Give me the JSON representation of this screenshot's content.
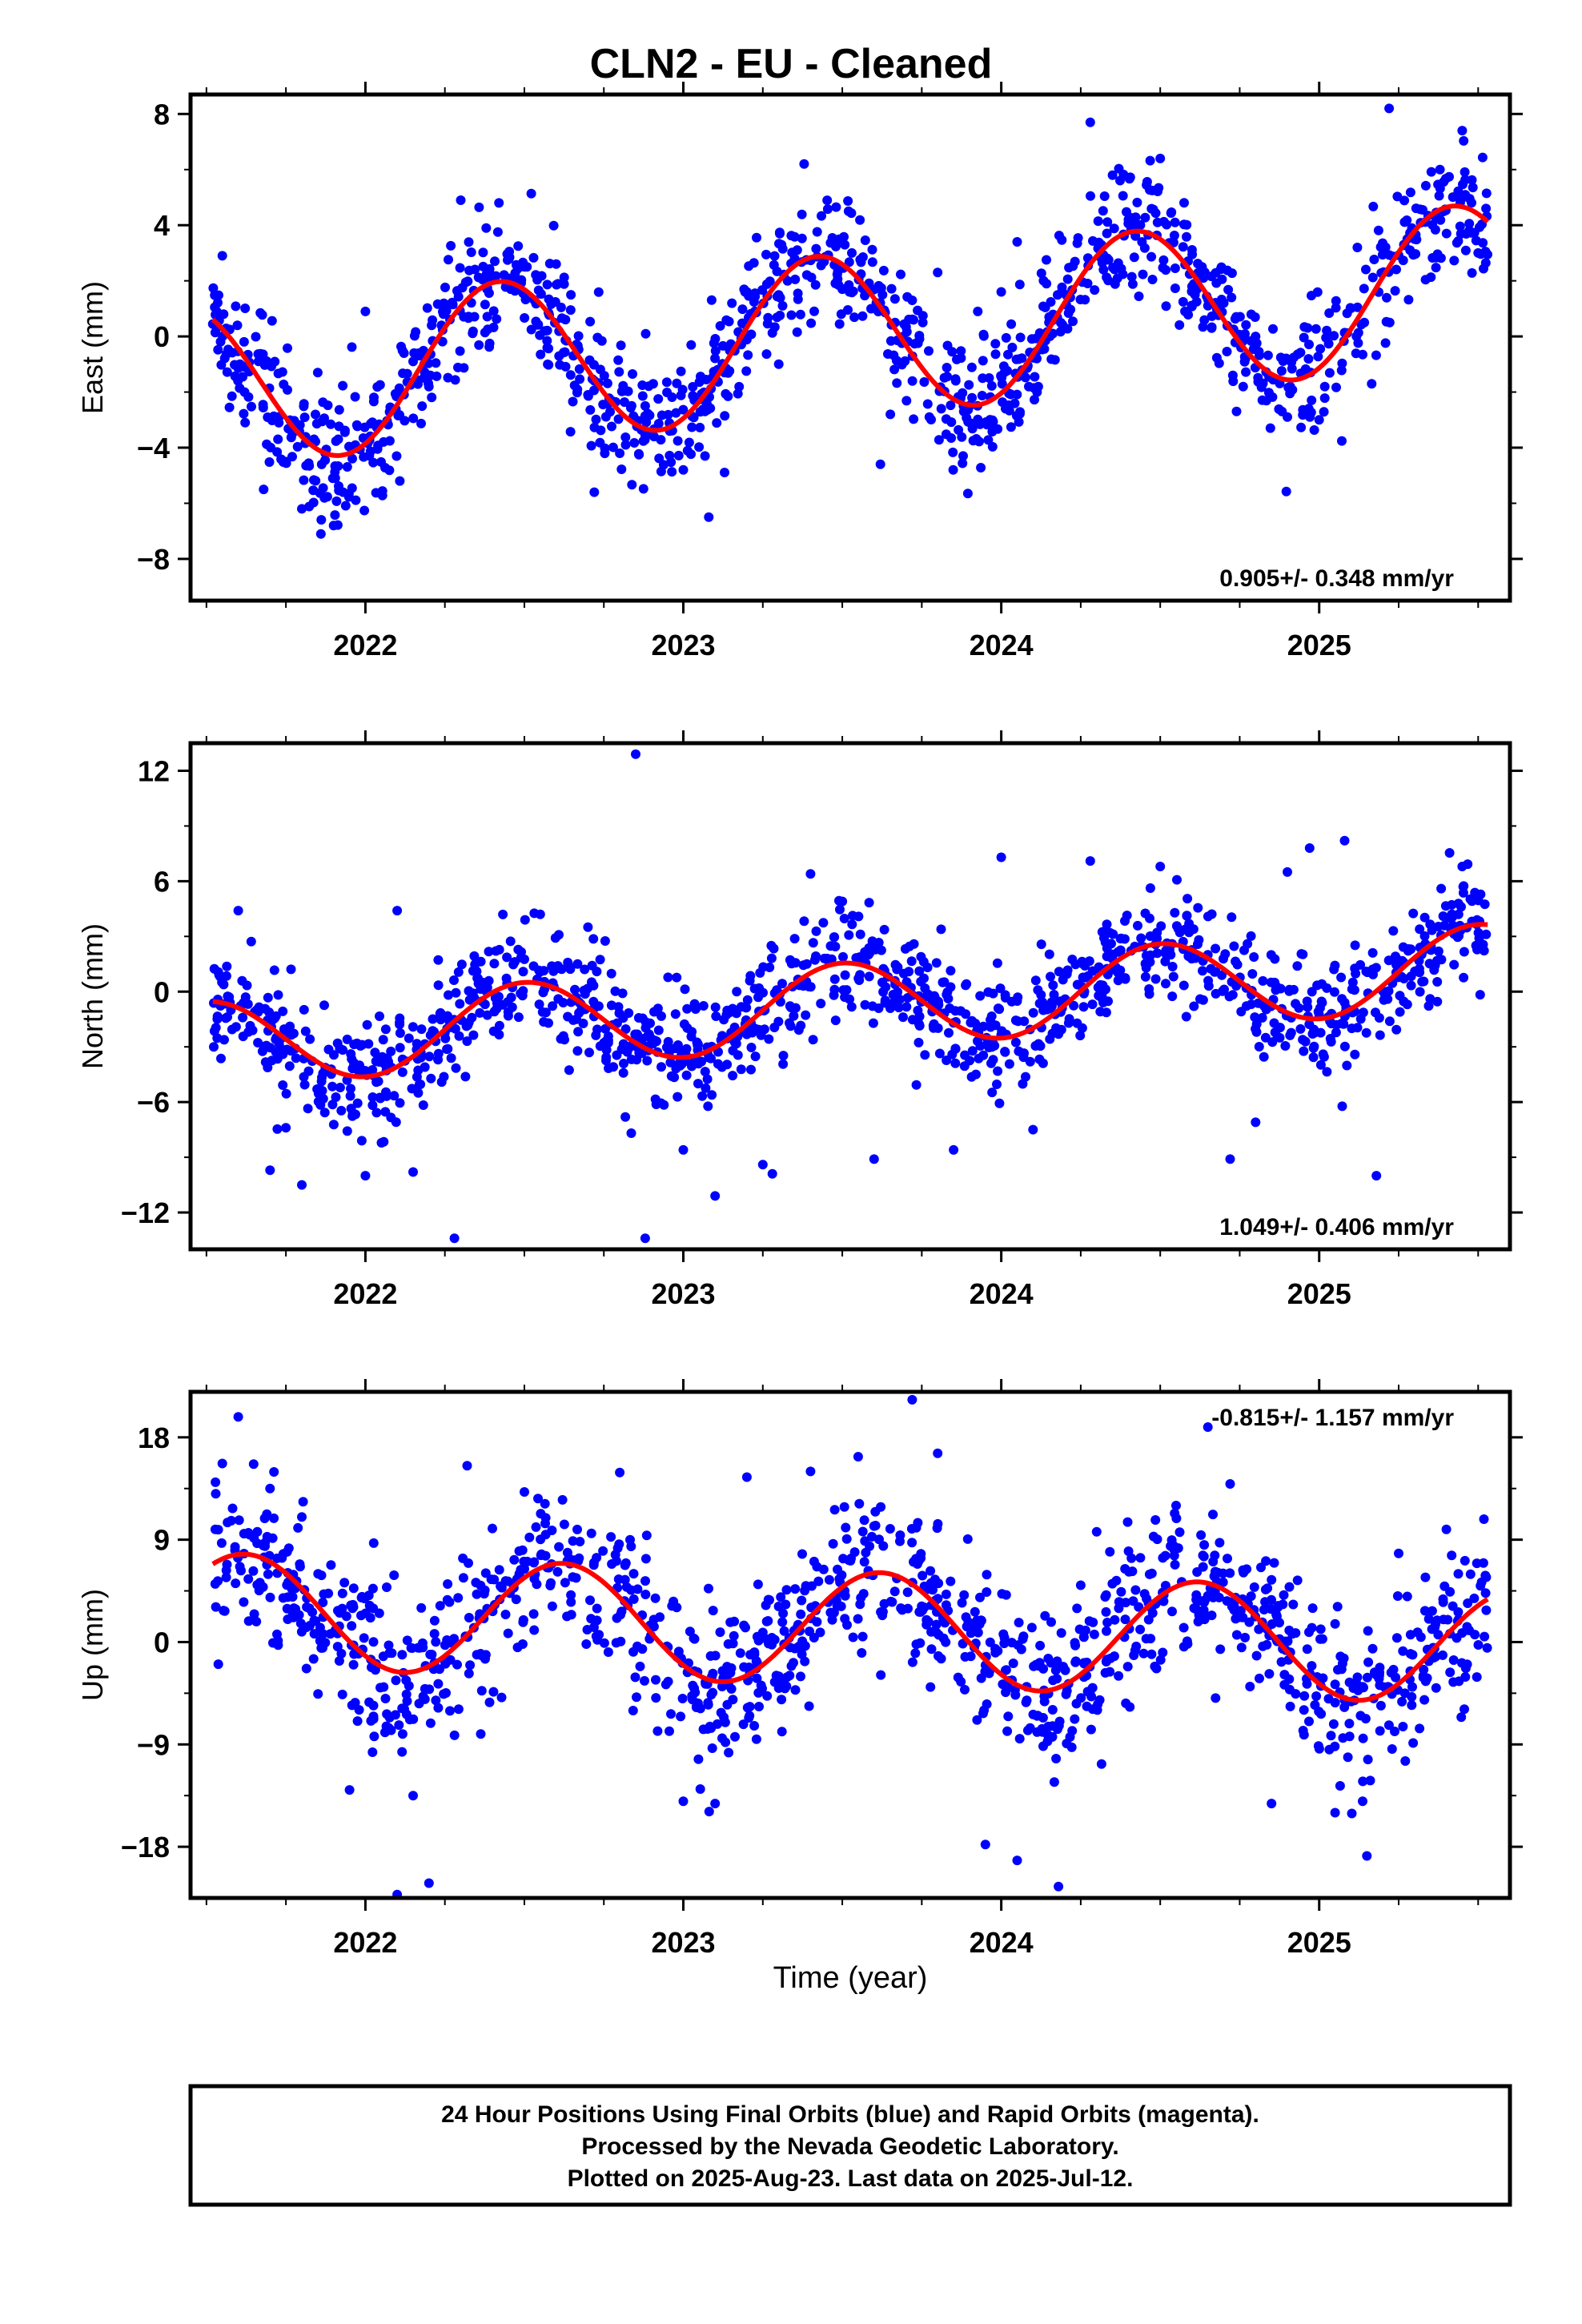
{
  "title": "CLN2  - EU - Cleaned",
  "xlabel": "Time (year)",
  "footer": [
    "24 Hour Positions Using Final Orbits (blue) and Rapid Orbits (magenta).",
    "Processed by the Nevada Geodetic Laboratory.",
    "Plotted on 2025-Aug-23. Last data on 2025-Jul-12."
  ],
  "colors": {
    "points": "#0000ff",
    "fit": "#ff0000",
    "frame": "#000000"
  },
  "chart_data": [
    {
      "type": "scatter",
      "ylabel": "East (mm)",
      "rate": "0.905+/- 0.348 mm/yr",
      "rate_position": "bottom-right",
      "xlim": [
        2021.45,
        2025.6
      ],
      "ylim": [
        -9.5,
        8.7
      ],
      "xticks": [
        2022,
        2023,
        2024,
        2025
      ],
      "yticks": [
        8,
        4,
        0,
        -4,
        -8
      ],
      "ytick_labels": [
        "8",
        "4",
        "0",
        "−4",
        "−8"
      ],
      "fit": {
        "offset": 0.05,
        "trend": 0.905,
        "amp": 2.9,
        "peak": 2021.42,
        "data_start": 2021.52,
        "data_end": 2025.53
      },
      "noise_sd": 1.15,
      "series": [
        {
          "name": "",
          "x": [
            2021.55,
            2021.62,
            2021.68,
            2021.75,
            2021.8,
            2021.86,
            2021.9,
            2021.93,
            2022.0,
            2022.15,
            2022.3,
            2022.38,
            2022.42,
            2022.5,
            2022.6,
            2022.72,
            2022.8,
            2022.88,
            2023.0,
            2023.08,
            2023.2,
            2023.3,
            2023.35,
            2023.38,
            2023.5,
            2023.62,
            2023.72,
            2023.8,
            2023.88,
            2024.0,
            2024.05,
            2024.15,
            2024.28,
            2024.35,
            2024.4,
            2024.5,
            2024.6,
            2024.7,
            2024.8,
            2024.9,
            2025.0,
            2025.12,
            2025.22,
            2025.3,
            2025.38,
            2025.45,
            2025.5
          ],
          "y": [
            2.9,
            -2.0,
            -5.5,
            -4.5,
            -6.2,
            -7.1,
            -6.8,
            -5.6,
            0.9,
            -0.9,
            4.9,
            3.9,
            4.8,
            2.5,
            2.6,
            -5.6,
            -4.2,
            -2.5,
            -4.8,
            -6.5,
            1.6,
            -1.0,
            2.8,
            6.2,
            1.7,
            -4.6,
            1.3,
            2.3,
            -4.3,
            1.6,
            3.4,
            0.5,
            7.7,
            5.8,
            4.2,
            6.4,
            1.8,
            1.2,
            0.0,
            -2.9,
            -3.0,
            3.2,
            8.2,
            3.5,
            6.0,
            7.4,
            3.0
          ]
        }
      ]
    },
    {
      "type": "scatter",
      "ylabel": "North (mm)",
      "rate": "1.049+/- 0.406 mm/yr",
      "rate_position": "bottom-right",
      "xlim": [
        2021.45,
        2025.6
      ],
      "ylim": [
        -14,
        13.5
      ],
      "xticks": [
        2022,
        2023,
        2024,
        2025
      ],
      "yticks": [
        12,
        6,
        0,
        -6,
        -12
      ],
      "ytick_labels": [
        "12",
        "6",
        "0",
        "−6",
        "−12"
      ],
      "fit": {
        "offset": -0.75,
        "trend": 1.049,
        "amp": 2.3,
        "peak": 2021.5,
        "data_start": 2021.52,
        "data_end": 2025.53
      },
      "noise_sd": 1.6,
      "series": [
        {
          "name": "",
          "x": [
            2021.6,
            2021.7,
            2021.75,
            2021.8,
            2022.0,
            2022.1,
            2022.15,
            2022.28,
            2022.35,
            2022.55,
            2022.7,
            2022.85,
            2022.88,
            2023.0,
            2023.1,
            2023.25,
            2023.28,
            2023.4,
            2023.5,
            2023.6,
            2023.85,
            2024.0,
            2024.1,
            2024.28,
            2024.5,
            2024.65,
            2024.72,
            2024.8,
            2024.9,
            2024.97,
            2025.08,
            2025.18,
            2025.45
          ],
          "y": [
            4.4,
            -9.7,
            -7.4,
            -10.5,
            -10.0,
            4.4,
            -9.8,
            -13.4,
            1.1,
            4.2,
            3.5,
            12.9,
            -13.4,
            -8.6,
            -11.1,
            -9.4,
            -9.9,
            6.4,
            4.9,
            -9.1,
            -8.6,
            7.3,
            -7.5,
            7.1,
            6.8,
            2.0,
            -9.1,
            -7.1,
            6.5,
            7.8,
            8.2,
            -10.0,
            6.8
          ]
        }
      ]
    },
    {
      "type": "scatter",
      "ylabel": "Up (mm)",
      "rate": "-0.815+/- 1.157 mm/yr",
      "rate_position": "top-right",
      "xlim": [
        2021.45,
        2025.6
      ],
      "ylim": [
        -22.5,
        22
      ],
      "xticks": [
        2022,
        2023,
        2024,
        2025
      ],
      "yticks": [
        18,
        9,
        0,
        -9,
        -18
      ],
      "ytick_labels": [
        "18",
        "9",
        "0",
        "−9",
        "−18"
      ],
      "fit": {
        "offset": 1.2,
        "trend": -0.815,
        "amp": 5.0,
        "peak": 2021.62,
        "data_start": 2021.52,
        "data_end": 2025.53
      },
      "noise_sd": 3.5,
      "series": [
        {
          "name": "",
          "x": [
            2021.55,
            2021.6,
            2021.7,
            2021.8,
            2021.95,
            2022.1,
            2022.15,
            2022.2,
            2022.32,
            2022.5,
            2022.62,
            2022.8,
            2023.0,
            2023.1,
            2023.2,
            2023.4,
            2023.55,
            2023.72,
            2023.8,
            2023.95,
            2024.05,
            2024.18,
            2024.3,
            2024.55,
            2024.65,
            2024.72,
            2024.85,
            2025.05,
            2025.15,
            2025.25,
            2025.4
          ],
          "y": [
            15.7,
            19.8,
            13.5,
            11.0,
            -13.0,
            -22.2,
            -13.5,
            -21.2,
            15.5,
            13.2,
            12.5,
            14.9,
            -14.0,
            -14.2,
            14.5,
            15.0,
            16.3,
            21.3,
            16.6,
            -17.8,
            -19.2,
            -21.5,
            9.7,
            12.0,
            18.9,
            13.9,
            -14.2,
            -15.0,
            -18.8,
            7.8,
            9.9
          ]
        }
      ]
    }
  ]
}
